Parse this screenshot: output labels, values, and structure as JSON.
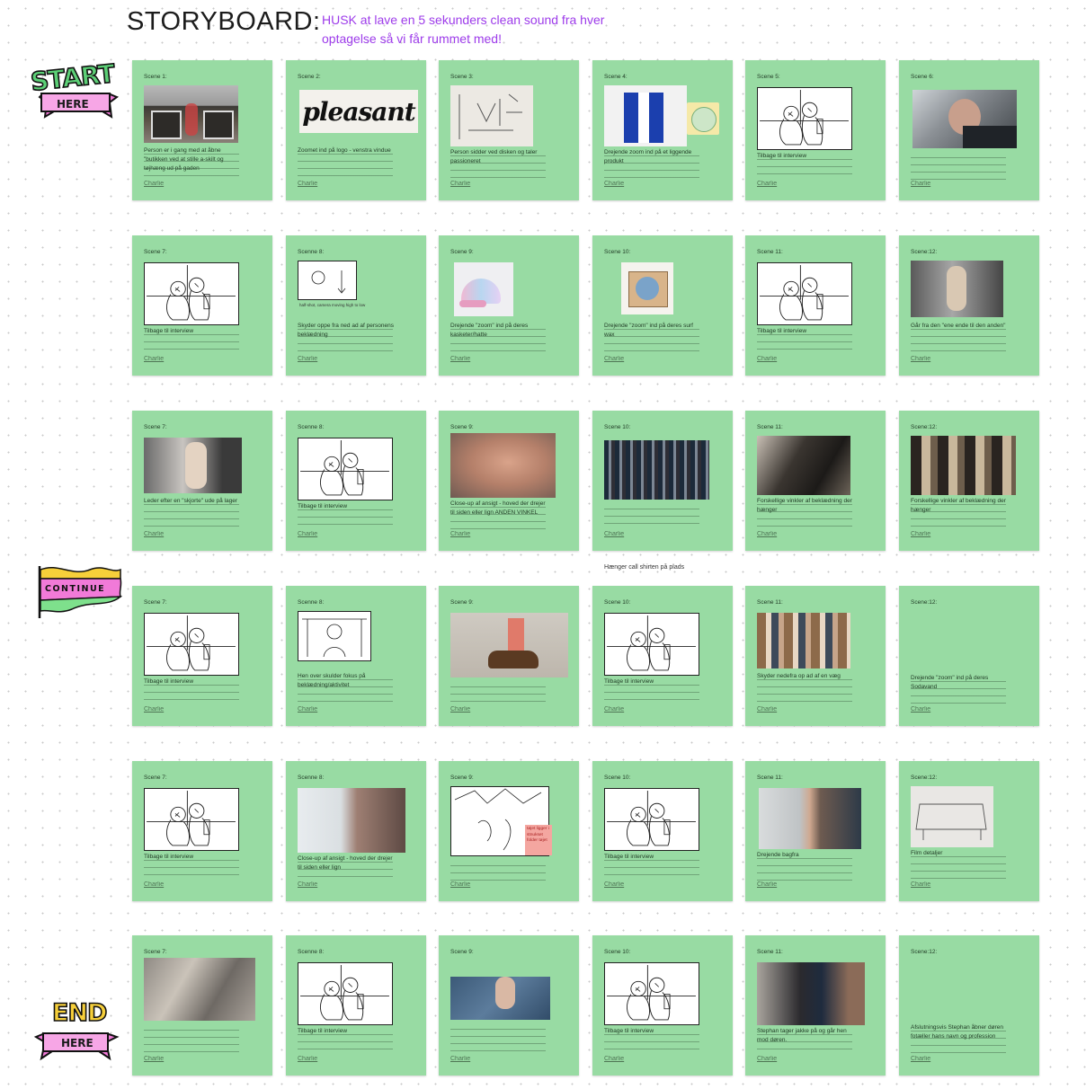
{
  "header": {
    "title": "STORYBOARD:",
    "note": "HUSK at lave en 5 sekunders clean sound fra hver optagelse så vi får rummet med!"
  },
  "stickers": {
    "start_word": "START",
    "start_banner": "HERE",
    "continue_word": "CONTINUE",
    "end_word": "END",
    "end_banner": "HERE"
  },
  "between_rows_note": "Hænger call shirten på plads",
  "colors": {
    "card": "#98dba3",
    "accent_note": "#9d3bea",
    "sticker_green": "#5ccf76",
    "sticker_pink": "#f17ad8",
    "sticker_yellow": "#f6cf3a"
  },
  "rows": [
    [
      {
        "label": "Scene 1:",
        "text": "Person er i gang med at åbne \"butikken ved at stille a-skilt og tøjhæng ud på gaden",
        "author": "Charlie",
        "image": "photo-shopfront"
      },
      {
        "label": "Scene 2:",
        "text": "Zoomet ind på logo - venstra vindue",
        "author": "Charlie",
        "image": "logo-pleasant"
      },
      {
        "label": "Scene 3:",
        "text": "Person sidder ved disken og taler passioneret",
        "author": "Charlie",
        "image": "sketch-desk"
      },
      {
        "label": "Scene 4:",
        "text": "Drejende zoom ind på et liggende produkt",
        "author": "Charlie",
        "image": "photo-shirt"
      },
      {
        "label": "Scene 5:",
        "text": "Tilbage til interview",
        "author": "Charlie",
        "image": "sketch-interview"
      },
      {
        "label": "Scene 6:",
        "text": "",
        "author": "Charlie",
        "image": "photo-man"
      }
    ],
    [
      {
        "label": "Scene 7:",
        "text": "Tilbage til interview",
        "author": "Charlie",
        "image": "sketch-interview"
      },
      {
        "label": "Scenne 8:",
        "text": "Skyder oppe fra ned ad af personens beklædning",
        "author": "Charlie",
        "image": "sketch-down",
        "caption": "half-shot, camera moving high to low"
      },
      {
        "label": "Scene 9:",
        "text": "Drejende \"zoom\" ind på deres kasketer/hatte",
        "author": "Charlie",
        "image": "photo-cap"
      },
      {
        "label": "Scene 10:",
        "text": "Drejende \"zoom\" ind på deres surf wax",
        "author": "Charlie",
        "image": "photo-wax"
      },
      {
        "label": "Scene 11:",
        "text": "Tilbage til interview",
        "author": "Charlie",
        "image": "sketch-interview"
      },
      {
        "label": "Scene:12:",
        "text": "Går fra den \"ene ende til den anden\"",
        "author": "Charlie",
        "image": "photo-mannequin"
      }
    ],
    [
      {
        "label": "Scene 7:",
        "text": "Leder efter en \"skjorte\" ude på lager",
        "author": "Charlie",
        "image": "photo-mannequin2"
      },
      {
        "label": "Scenne 8:",
        "text": "Tilbage til interview",
        "author": "Charlie",
        "image": "sketch-interview"
      },
      {
        "label": "Scene 9:",
        "text": "Close-up af ansigt - hoved der drejer til siden eller lign ANDEN VINKEL",
        "author": "Charlie",
        "image": "photo-face"
      },
      {
        "label": "Scene 10:",
        "text": "",
        "author": "Charlie",
        "image": "photo-rack"
      },
      {
        "label": "Scene 11:",
        "text": "Forskellige vinkler af beklædning der hænger",
        "author": "Charlie",
        "image": "photo-jacket"
      },
      {
        "label": "Scene:12:",
        "text": "Forskellige vinkler af beklædning der hænger",
        "author": "Charlie",
        "image": "photo-clothes"
      }
    ],
    [
      {
        "label": "Scene 7:",
        "text": "Tilbage til interview",
        "author": "Charlie",
        "image": "sketch-interview"
      },
      {
        "label": "Scenne 8:",
        "text": "Hen over skulder fokus på beklædning/aktivitet",
        "author": "Charlie",
        "image": "sketch-shoulder"
      },
      {
        "label": "Scene 9:",
        "text": "",
        "author": "Charlie",
        "image": "photo-shoe"
      },
      {
        "label": "Scene 10:",
        "text": "Tilbage til interview",
        "author": "Charlie",
        "image": "sketch-interview"
      },
      {
        "label": "Scene 11:",
        "text": "Skyder nedefra op ad af en væg",
        "author": "Charlie",
        "image": "photo-wall"
      },
      {
        "label": "Scene:12:",
        "text": "Drejende \"zoom\" ind på deres Sodavand",
        "author": "Charlie",
        "image": "none"
      }
    ],
    [
      {
        "label": "Scene 7:",
        "text": "Tilbage til interview",
        "author": "Charlie",
        "image": "sketch-interview"
      },
      {
        "label": "Scenne 8:",
        "text": "Close-up af ansigt - hoved der drejer til siden eller lign",
        "author": "Charlie",
        "image": "photo-profile"
      },
      {
        "label": "Scene 9:",
        "text": "",
        "author": "Charlie",
        "image": "sketch-hands",
        "postit": "tøjet ligger i stnukset folder tøjet"
      },
      {
        "label": "Scene 10:",
        "text": "Tilbage til interview",
        "author": "Charlie",
        "image": "sketch-interview"
      },
      {
        "label": "Scene 11:",
        "text": "Drejende bagfra",
        "author": "Charlie",
        "image": "photo-back"
      },
      {
        "label": "Scene:12:",
        "text": "Film detaljer",
        "author": "Charlie",
        "image": "sketch-table"
      }
    ],
    [
      {
        "label": "Scene 7:",
        "text": "",
        "author": "Charlie",
        "image": "photo-fabric"
      },
      {
        "label": "Scenne 8:",
        "text": "Tilbage til interview",
        "author": "Charlie",
        "image": "sketch-interview"
      },
      {
        "label": "Scene 9:",
        "text": "",
        "author": "Charlie",
        "image": "photo-jeans"
      },
      {
        "label": "Scene 10:",
        "text": "Tilbage til interview",
        "author": "Charlie",
        "image": "sketch-interview"
      },
      {
        "label": "Scene 11:",
        "text": "Stephan tager jakke på og går hen mod døren.",
        "author": "Charlie",
        "image": "photo-jacket2"
      },
      {
        "label": "Scene:12:",
        "text": "Afslutningsvis Stephan åbner døren fotæller hans navn og profession",
        "author": "Charlie",
        "image": "none"
      }
    ]
  ]
}
